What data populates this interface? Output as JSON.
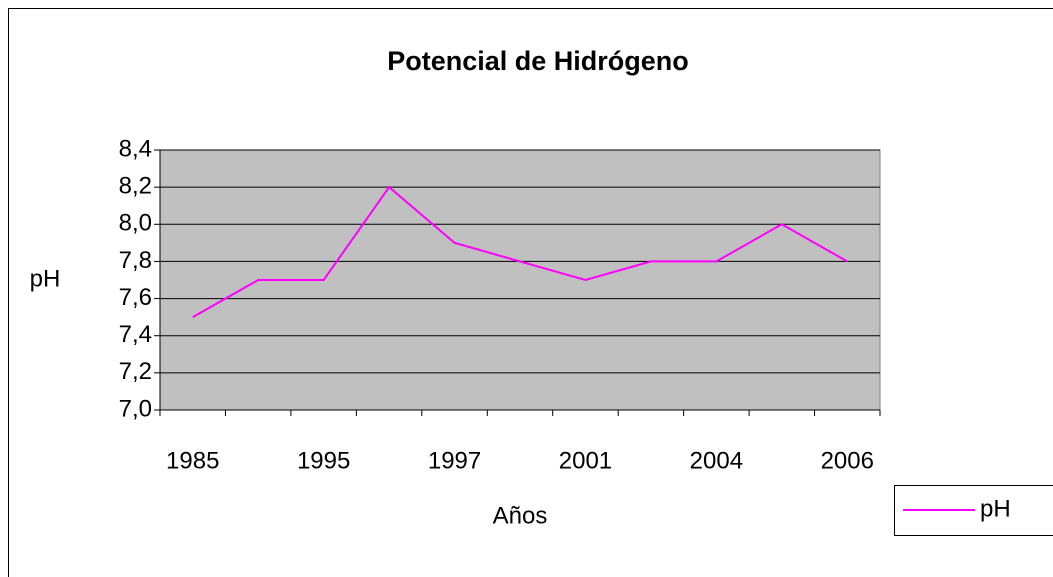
{
  "chart_data": {
    "type": "line",
    "title": "Potencial de Hidrógeno",
    "x_label": "Años",
    "y_label": "pH",
    "categories": [
      "1985",
      null,
      "1995",
      null,
      "1997",
      null,
      "2001",
      null,
      "2004",
      null,
      "2006"
    ],
    "series": [
      {
        "name": "pH",
        "color": "#ff00ff",
        "values": [
          7.5,
          7.7,
          7.7,
          8.2,
          7.9,
          7.8,
          7.7,
          7.8,
          7.8,
          8.0,
          7.8
        ]
      }
    ],
    "ylim": [
      7.0,
      8.4
    ],
    "yticks": [
      {
        "value": 7.0,
        "label": "7,0"
      },
      {
        "value": 7.2,
        "label": "7,2"
      },
      {
        "value": 7.4,
        "label": "7,4"
      },
      {
        "value": 7.6,
        "label": "7,6"
      },
      {
        "value": 7.8,
        "label": "7,8"
      },
      {
        "value": 8.0,
        "label": "8,0"
      },
      {
        "value": 8.2,
        "label": "8,2"
      },
      {
        "value": 8.4,
        "label": "8,4"
      }
    ],
    "grid": true,
    "plot_background": "#c0c0c0",
    "legend": "right"
  }
}
